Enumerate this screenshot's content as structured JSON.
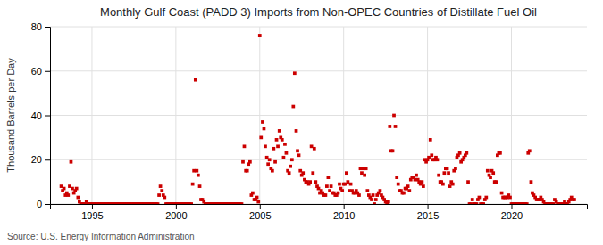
{
  "chart_data": {
    "type": "scatter",
    "title": "Monthly Gulf Coast (PADD 3) Imports from Non-OPEC Countries of Distillate Fuel Oil",
    "ylabel": "Thousand Barrels per Day",
    "source": "Source: U.S. Energy Information Administration",
    "color": "#cc0000",
    "marker": "square",
    "grid": true,
    "xlim": [
      1992.5,
      2024.5
    ],
    "ylim": [
      0,
      80
    ],
    "xticks": [
      1995,
      2000,
      2005,
      2010,
      2015,
      2020
    ],
    "yticks": [
      0,
      20,
      40,
      60,
      80
    ],
    "x": [
      1993.17,
      1993.25,
      1993.33,
      1993.42,
      1993.5,
      1993.58,
      1993.67,
      1993.75,
      1993.83,
      1993.92,
      1994.0,
      1994.08,
      1994.17,
      1994.25,
      1994.33,
      1994.42,
      1994.5,
      1994.58,
      1994.67,
      1994.75,
      1994.83,
      1994.92,
      1995.0,
      1995.08,
      1995.17,
      1995.25,
      1995.33,
      1995.42,
      1995.5,
      1995.58,
      1995.67,
      1995.75,
      1995.83,
      1995.92,
      1996.0,
      1996.08,
      1996.17,
      1996.25,
      1996.33,
      1996.42,
      1996.5,
      1996.58,
      1996.67,
      1996.75,
      1996.83,
      1996.92,
      1997.0,
      1997.08,
      1997.17,
      1997.25,
      1997.33,
      1997.42,
      1997.5,
      1997.58,
      1997.67,
      1997.75,
      1997.83,
      1997.92,
      1998.0,
      1998.08,
      1998.17,
      1998.25,
      1998.33,
      1998.42,
      1998.5,
      1998.58,
      1998.67,
      1998.75,
      1998.83,
      1998.92,
      1999.0,
      1999.08,
      1999.17,
      1999.25,
      1999.33,
      1999.42,
      1999.5,
      1999.58,
      1999.67,
      1999.75,
      1999.83,
      1999.92,
      2000.0,
      2000.08,
      2000.17,
      2000.25,
      2000.33,
      2000.42,
      2000.5,
      2000.58,
      2000.67,
      2000.75,
      2000.83,
      2000.92,
      2001.0,
      2001.08,
      2001.17,
      2001.25,
      2001.33,
      2001.42,
      2001.5,
      2001.58,
      2001.67,
      2001.75,
      2001.83,
      2001.92,
      2002.0,
      2002.08,
      2002.17,
      2002.25,
      2002.33,
      2002.42,
      2002.5,
      2002.58,
      2002.67,
      2002.75,
      2002.83,
      2002.92,
      2003.0,
      2003.08,
      2003.17,
      2003.25,
      2003.33,
      2003.42,
      2003.5,
      2003.58,
      2003.67,
      2003.75,
      2003.83,
      2003.92,
      2004.0,
      2004.08,
      2004.17,
      2004.25,
      2004.33,
      2004.42,
      2004.5,
      2004.58,
      2004.67,
      2004.75,
      2004.83,
      2004.92,
      2005.0,
      2005.08,
      2005.17,
      2005.25,
      2005.33,
      2005.42,
      2005.5,
      2005.58,
      2005.67,
      2005.75,
      2005.83,
      2005.92,
      2006.0,
      2006.08,
      2006.17,
      2006.25,
      2006.33,
      2006.42,
      2006.5,
      2006.58,
      2006.67,
      2006.75,
      2006.83,
      2006.92,
      2007.0,
      2007.08,
      2007.17,
      2007.25,
      2007.33,
      2007.42,
      2007.5,
      2007.58,
      2007.67,
      2007.75,
      2007.83,
      2007.92,
      2008.0,
      2008.08,
      2008.17,
      2008.25,
      2008.33,
      2008.42,
      2008.5,
      2008.58,
      2008.67,
      2008.75,
      2008.83,
      2008.92,
      2009.0,
      2009.08,
      2009.17,
      2009.25,
      2009.33,
      2009.42,
      2009.5,
      2009.58,
      2009.67,
      2009.75,
      2009.83,
      2009.92,
      2010.0,
      2010.08,
      2010.17,
      2010.25,
      2010.33,
      2010.42,
      2010.5,
      2010.58,
      2010.67,
      2010.75,
      2010.83,
      2010.92,
      2011.0,
      2011.08,
      2011.17,
      2011.25,
      2011.33,
      2011.42,
      2011.5,
      2011.58,
      2011.67,
      2011.75,
      2011.83,
      2011.92,
      2012.0,
      2012.08,
      2012.17,
      2012.25,
      2012.33,
      2012.42,
      2012.5,
      2012.58,
      2012.67,
      2012.75,
      2012.83,
      2012.92,
      2013.0,
      2013.08,
      2013.17,
      2013.25,
      2013.33,
      2013.42,
      2013.5,
      2013.58,
      2013.67,
      2013.75,
      2013.83,
      2013.92,
      2014.0,
      2014.08,
      2014.17,
      2014.25,
      2014.33,
      2014.42,
      2014.5,
      2014.58,
      2014.67,
      2014.75,
      2014.83,
      2014.92,
      2015.0,
      2015.08,
      2015.17,
      2015.25,
      2015.33,
      2015.42,
      2015.5,
      2015.58,
      2015.67,
      2015.75,
      2015.83,
      2015.92,
      2016.0,
      2016.08,
      2016.17,
      2016.25,
      2016.33,
      2016.42,
      2016.5,
      2016.58,
      2016.67,
      2016.75,
      2016.83,
      2016.92,
      2017.0,
      2017.08,
      2017.17,
      2017.25,
      2017.33,
      2017.42,
      2017.5,
      2017.58,
      2017.67,
      2017.75,
      2017.83,
      2017.92,
      2018.0,
      2018.08,
      2018.17,
      2018.25,
      2018.33,
      2018.42,
      2018.5,
      2018.58,
      2018.67,
      2018.75,
      2018.83,
      2018.92,
      2019.0,
      2019.08,
      2019.17,
      2019.25,
      2019.33,
      2019.42,
      2019.5,
      2019.58,
      2019.67,
      2019.75,
      2019.83,
      2019.92,
      2020.0,
      2020.08,
      2020.17,
      2020.25,
      2020.33,
      2020.42,
      2020.5,
      2020.58,
      2020.67,
      2020.75,
      2020.83,
      2020.92,
      2021.0,
      2021.08,
      2021.17,
      2021.25,
      2021.33,
      2021.42,
      2021.5,
      2021.58,
      2021.67,
      2021.75,
      2021.83,
      2021.92,
      2022.0,
      2022.08,
      2022.17,
      2022.25,
      2022.33,
      2022.42,
      2022.5,
      2022.58,
      2022.67,
      2022.75,
      2022.83,
      2022.92,
      2023.0,
      2023.08,
      2023.17,
      2023.25,
      2023.33,
      2023.42,
      2023.5,
      2023.58,
      2023.67,
      2023.75
    ],
    "values": [
      8,
      6,
      7,
      4,
      5,
      4,
      8,
      19,
      7,
      5,
      6,
      7,
      3,
      1,
      0,
      0,
      0,
      0,
      1,
      0,
      0,
      0,
      0,
      0,
      0,
      0,
      0,
      0,
      0,
      0,
      0,
      0,
      0,
      0,
      0,
      0,
      0,
      0,
      0,
      0,
      0,
      0,
      0,
      0,
      0,
      0,
      0,
      0,
      0,
      0,
      0,
      0,
      0,
      0,
      0,
      0,
      0,
      0,
      0,
      0,
      0,
      0,
      0,
      0,
      0,
      0,
      0,
      0,
      0,
      0,
      4,
      8,
      6,
      4,
      3,
      0,
      0,
      0,
      0,
      0,
      0,
      0,
      0,
      0,
      0,
      0,
      0,
      0,
      0,
      0,
      0,
      0,
      0,
      0,
      9,
      15,
      56,
      15,
      13,
      8,
      2,
      2,
      1,
      0,
      0,
      0,
      0,
      0,
      0,
      0,
      0,
      0,
      0,
      0,
      0,
      0,
      0,
      0,
      0,
      0,
      0,
      0,
      0,
      0,
      0,
      0,
      0,
      0,
      0,
      0,
      19,
      26,
      15,
      15,
      18,
      19,
      4,
      5,
      2,
      2,
      3,
      1,
      76,
      30,
      37,
      34,
      26,
      21,
      18,
      20,
      16,
      15,
      25,
      19,
      29,
      26,
      33,
      30,
      29,
      21,
      27,
      23,
      15,
      14,
      17,
      20,
      44,
      59,
      33,
      24,
      22,
      15,
      13,
      14,
      11,
      10,
      10,
      9,
      10,
      26,
      14,
      25,
      10,
      8,
      7,
      5,
      6,
      5,
      4,
      4,
      8,
      12,
      6,
      8,
      5,
      5,
      4,
      4,
      5,
      9,
      7,
      6,
      9,
      9,
      14,
      10,
      6,
      9,
      6,
      5,
      5,
      6,
      5,
      4,
      16,
      14,
      16,
      13,
      16,
      6,
      4,
      3,
      2,
      4,
      0,
      2,
      4,
      5,
      6,
      4,
      3,
      2,
      1,
      0,
      1,
      35,
      24,
      24,
      40,
      35,
      12,
      9,
      6,
      6,
      5,
      5,
      7,
      7,
      8,
      6,
      11,
      12,
      12,
      11,
      13,
      11,
      10,
      9,
      10,
      8,
      20,
      19,
      20,
      21,
      29,
      22,
      20,
      20,
      21,
      20,
      13,
      10,
      10,
      9,
      14,
      16,
      16,
      14,
      8,
      10,
      9,
      15,
      16,
      21,
      22,
      23,
      19,
      20,
      21,
      22,
      23,
      10,
      0,
      0,
      2,
      0,
      0,
      0,
      2,
      3,
      0,
      0,
      0,
      2,
      3,
      15,
      13,
      12,
      15,
      14,
      10,
      10,
      22,
      23,
      23,
      5,
      3,
      3,
      3,
      3,
      4,
      3,
      0,
      0,
      0,
      0,
      0,
      0,
      0,
      0,
      0,
      0,
      0,
      0,
      23,
      24,
      10,
      5,
      4,
      3,
      2,
      2,
      2,
      3,
      2,
      1,
      0,
      0,
      0,
      0,
      0,
      0,
      0,
      2,
      1,
      0,
      0,
      0,
      0,
      0,
      1,
      0,
      0,
      1,
      2,
      3,
      2,
      2
    ]
  }
}
